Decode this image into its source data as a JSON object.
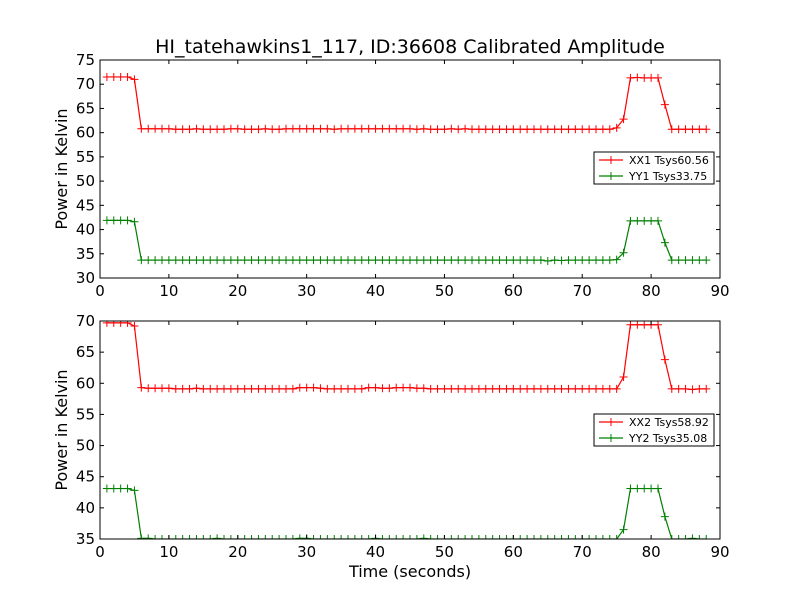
{
  "title": "HI_tatehawkins1_117, ID:36608 Calibrated Amplitude",
  "colors": {
    "red": "#ff0000",
    "green": "#008000"
  },
  "chart_data": [
    {
      "type": "line",
      "xlabel": "",
      "ylabel": "Power in Kelvin",
      "xlim": [
        0,
        90
      ],
      "ylim": [
        30,
        75
      ],
      "xticks": [
        0,
        10,
        20,
        30,
        40,
        50,
        60,
        70,
        80,
        90
      ],
      "yticks": [
        30,
        35,
        40,
        45,
        50,
        55,
        60,
        65,
        70,
        75
      ],
      "legend_position": "center-right",
      "series": [
        {
          "name": "XX1 Tsys60.56",
          "color": "#ff0000",
          "x": [
            1,
            2,
            3,
            4,
            5,
            6,
            7,
            8,
            9,
            10,
            11,
            12,
            13,
            14,
            15,
            16,
            17,
            18,
            19,
            20,
            21,
            22,
            23,
            24,
            25,
            26,
            27,
            28,
            29,
            30,
            31,
            32,
            33,
            34,
            35,
            36,
            37,
            38,
            39,
            40,
            41,
            42,
            43,
            44,
            45,
            46,
            47,
            48,
            49,
            50,
            51,
            52,
            53,
            54,
            55,
            56,
            57,
            58,
            59,
            60,
            61,
            62,
            63,
            64,
            65,
            66,
            67,
            68,
            69,
            70,
            71,
            72,
            73,
            74,
            75,
            76,
            77,
            78,
            79,
            80,
            81,
            82,
            83,
            84,
            85,
            86,
            87,
            88
          ],
          "values": [
            71.5,
            71.5,
            71.5,
            71.5,
            71.0,
            60.8,
            60.8,
            60.8,
            60.8,
            60.8,
            60.7,
            60.7,
            60.7,
            60.8,
            60.7,
            60.7,
            60.7,
            60.7,
            60.8,
            60.8,
            60.7,
            60.7,
            60.7,
            60.8,
            60.7,
            60.7,
            60.8,
            60.8,
            60.8,
            60.8,
            60.8,
            60.8,
            60.8,
            60.7,
            60.8,
            60.8,
            60.8,
            60.8,
            60.8,
            60.8,
            60.8,
            60.8,
            60.8,
            60.8,
            60.8,
            60.7,
            60.8,
            60.7,
            60.7,
            60.7,
            60.8,
            60.7,
            60.8,
            60.7,
            60.7,
            60.7,
            60.7,
            60.7,
            60.7,
            60.7,
            60.7,
            60.7,
            60.7,
            60.7,
            60.7,
            60.7,
            60.7,
            60.7,
            60.7,
            60.7,
            60.7,
            60.7,
            60.7,
            60.7,
            61.0,
            62.8,
            71.3,
            71.4,
            71.3,
            71.3,
            71.3,
            65.8,
            60.7,
            60.7,
            60.7,
            60.7,
            60.7,
            60.7
          ]
        },
        {
          "name": "YY1 Tsys33.75",
          "color": "#008000",
          "x": [
            1,
            2,
            3,
            4,
            5,
            6,
            7,
            8,
            9,
            10,
            11,
            12,
            13,
            14,
            15,
            16,
            17,
            18,
            19,
            20,
            21,
            22,
            23,
            24,
            25,
            26,
            27,
            28,
            29,
            30,
            31,
            32,
            33,
            34,
            35,
            36,
            37,
            38,
            39,
            40,
            41,
            42,
            43,
            44,
            45,
            46,
            47,
            48,
            49,
            50,
            51,
            52,
            53,
            54,
            55,
            56,
            57,
            58,
            59,
            60,
            61,
            62,
            63,
            64,
            65,
            66,
            67,
            68,
            69,
            70,
            71,
            72,
            73,
            74,
            75,
            76,
            77,
            78,
            79,
            80,
            81,
            82,
            83,
            84,
            85,
            86,
            87,
            88
          ],
          "values": [
            41.9,
            41.9,
            41.9,
            41.9,
            41.6,
            33.7,
            33.7,
            33.7,
            33.7,
            33.7,
            33.7,
            33.7,
            33.7,
            33.7,
            33.7,
            33.7,
            33.7,
            33.7,
            33.7,
            33.7,
            33.7,
            33.7,
            33.7,
            33.7,
            33.7,
            33.7,
            33.7,
            33.7,
            33.7,
            33.7,
            33.7,
            33.7,
            33.7,
            33.7,
            33.7,
            33.7,
            33.7,
            33.7,
            33.7,
            33.7,
            33.7,
            33.7,
            33.7,
            33.7,
            33.7,
            33.7,
            33.7,
            33.7,
            33.7,
            33.7,
            33.7,
            33.7,
            33.7,
            33.7,
            33.7,
            33.7,
            33.7,
            33.7,
            33.7,
            33.7,
            33.7,
            33.7,
            33.7,
            33.7,
            33.5,
            33.7,
            33.6,
            33.7,
            33.7,
            33.7,
            33.7,
            33.7,
            33.7,
            33.7,
            33.8,
            35.2,
            41.8,
            41.8,
            41.8,
            41.8,
            41.8,
            37.3,
            33.7,
            33.7,
            33.7,
            33.7,
            33.7,
            33.7
          ]
        }
      ]
    },
    {
      "type": "line",
      "xlabel": "Time (seconds)",
      "ylabel": "Power in Kelvin",
      "xlim": [
        0,
        90
      ],
      "ylim": [
        35,
        70
      ],
      "xticks": [
        0,
        10,
        20,
        30,
        40,
        50,
        60,
        70,
        80,
        90
      ],
      "yticks": [
        35,
        40,
        45,
        50,
        55,
        60,
        65,
        70
      ],
      "legend_position": "center-right",
      "series": [
        {
          "name": "XX2 Tsys58.92",
          "color": "#ff0000",
          "x": [
            1,
            2,
            3,
            4,
            5,
            6,
            7,
            8,
            9,
            10,
            11,
            12,
            13,
            14,
            15,
            16,
            17,
            18,
            19,
            20,
            21,
            22,
            23,
            24,
            25,
            26,
            27,
            28,
            29,
            30,
            31,
            32,
            33,
            34,
            35,
            36,
            37,
            38,
            39,
            40,
            41,
            42,
            43,
            44,
            45,
            46,
            47,
            48,
            49,
            50,
            51,
            52,
            53,
            54,
            55,
            56,
            57,
            58,
            59,
            60,
            61,
            62,
            63,
            64,
            65,
            66,
            67,
            68,
            69,
            70,
            71,
            72,
            73,
            74,
            75,
            76,
            77,
            78,
            79,
            80,
            81,
            82,
            83,
            84,
            85,
            86,
            87,
            88
          ],
          "values": [
            69.7,
            69.7,
            69.7,
            69.7,
            69.2,
            59.3,
            59.2,
            59.2,
            59.2,
            59.2,
            59.1,
            59.1,
            59.1,
            59.2,
            59.1,
            59.1,
            59.1,
            59.1,
            59.1,
            59.1,
            59.1,
            59.1,
            59.1,
            59.1,
            59.1,
            59.1,
            59.1,
            59.1,
            59.3,
            59.3,
            59.3,
            59.2,
            59.1,
            59.1,
            59.1,
            59.1,
            59.1,
            59.1,
            59.3,
            59.3,
            59.2,
            59.2,
            59.3,
            59.3,
            59.3,
            59.2,
            59.2,
            59.1,
            59.1,
            59.1,
            59.1,
            59.1,
            59.1,
            59.1,
            59.1,
            59.1,
            59.1,
            59.1,
            59.1,
            59.1,
            59.1,
            59.1,
            59.1,
            59.1,
            59.1,
            59.1,
            59.1,
            59.1,
            59.1,
            59.1,
            59.1,
            59.1,
            59.1,
            59.1,
            59.1,
            61.0,
            69.4,
            69.4,
            69.4,
            69.4,
            69.4,
            63.8,
            59.1,
            59.1,
            59.1,
            59.0,
            59.1,
            59.1
          ]
        },
        {
          "name": "YY2 Tsys35.08",
          "color": "#008000",
          "x": [
            1,
            2,
            3,
            4,
            5,
            6,
            7,
            8,
            9,
            10,
            11,
            12,
            13,
            14,
            15,
            16,
            17,
            18,
            19,
            20,
            21,
            22,
            23,
            24,
            25,
            26,
            27,
            28,
            29,
            30,
            31,
            32,
            33,
            34,
            35,
            36,
            37,
            38,
            39,
            40,
            41,
            42,
            43,
            44,
            45,
            46,
            47,
            48,
            49,
            50,
            51,
            52,
            53,
            54,
            55,
            56,
            57,
            58,
            59,
            60,
            61,
            62,
            63,
            64,
            65,
            66,
            67,
            68,
            69,
            70,
            71,
            72,
            73,
            74,
            75,
            76,
            77,
            78,
            79,
            80,
            81,
            82,
            83,
            84,
            85,
            86,
            87,
            88
          ],
          "values": [
            43.1,
            43.1,
            43.1,
            43.1,
            42.8,
            35.1,
            35.1,
            35.0,
            35.0,
            35.0,
            35.0,
            35.0,
            35.0,
            35.0,
            35.0,
            35.0,
            35.1,
            35.0,
            35.0,
            35.0,
            35.0,
            35.0,
            35.0,
            35.0,
            35.0,
            35.0,
            35.0,
            35.0,
            35.1,
            35.1,
            35.0,
            35.0,
            35.0,
            35.0,
            35.0,
            35.0,
            35.0,
            35.0,
            35.0,
            35.1,
            35.0,
            35.0,
            35.0,
            35.0,
            35.0,
            35.0,
            35.1,
            35.0,
            35.0,
            35.0,
            35.0,
            35.0,
            35.0,
            35.0,
            35.0,
            35.0,
            35.0,
            35.0,
            35.0,
            35.0,
            35.0,
            35.0,
            35.0,
            35.0,
            35.0,
            35.0,
            35.0,
            35.0,
            35.0,
            35.0,
            35.0,
            35.0,
            35.0,
            35.0,
            35.0,
            36.5,
            43.1,
            43.1,
            43.1,
            43.1,
            43.1,
            38.6,
            35.0,
            35.0,
            35.0,
            35.1,
            35.0,
            35.0
          ]
        }
      ]
    }
  ]
}
